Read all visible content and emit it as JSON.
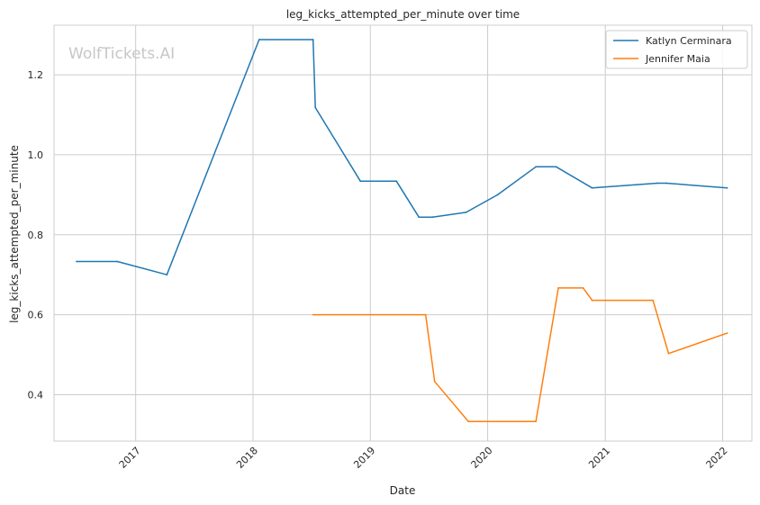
{
  "chart_data": {
    "type": "line",
    "title": "leg_kicks_attempted_per_minute over time",
    "xlabel": "Date",
    "ylabel": "leg_kicks_attempted_per_minute",
    "watermark": "WolfTickets.AI",
    "x_axis": {
      "type": "date",
      "range": [
        "2016-04-22",
        "2022-04-02"
      ],
      "ticks": [
        {
          "date": "2017-01-01",
          "label": "2017"
        },
        {
          "date": "2018-01-01",
          "label": "2018"
        },
        {
          "date": "2019-01-01",
          "label": "2019"
        },
        {
          "date": "2020-01-01",
          "label": "2020"
        },
        {
          "date": "2021-01-01",
          "label": "2021"
        },
        {
          "date": "2022-01-01",
          "label": "2022"
        }
      ]
    },
    "y_axis": {
      "range": [
        0.284,
        1.324
      ],
      "ticks": [
        {
          "value": 0.4,
          "label": "0.4"
        },
        {
          "value": 0.6,
          "label": "0.6"
        },
        {
          "value": 0.8,
          "label": "0.8"
        },
        {
          "value": 1.0,
          "label": "1.0"
        },
        {
          "value": 1.2,
          "label": "1.2"
        }
      ]
    },
    "grid": true,
    "legend": "top-right",
    "series": [
      {
        "name": "Katlyn Cerminara",
        "color": "#1f77b4",
        "points": [
          {
            "x": "2016-07-01",
            "y": 0.733
          },
          {
            "x": "2016-11-05",
            "y": 0.733
          },
          {
            "x": "2017-04-08",
            "y": 0.7
          },
          {
            "x": "2018-01-20",
            "y": 1.288
          },
          {
            "x": "2018-07-07",
            "y": 1.288
          },
          {
            "x": "2018-07-14",
            "y": 1.118
          },
          {
            "x": "2018-12-01",
            "y": 0.934
          },
          {
            "x": "2019-03-23",
            "y": 0.934
          },
          {
            "x": "2019-06-01",
            "y": 0.844
          },
          {
            "x": "2019-07-13",
            "y": 0.844
          },
          {
            "x": "2019-10-26",
            "y": 0.856
          },
          {
            "x": "2020-02-01",
            "y": 0.9
          },
          {
            "x": "2020-05-30",
            "y": 0.97
          },
          {
            "x": "2020-08-01",
            "y": 0.97
          },
          {
            "x": "2020-11-21",
            "y": 0.917
          },
          {
            "x": "2021-06-12",
            "y": 0.929
          },
          {
            "x": "2021-07-10",
            "y": 0.929
          },
          {
            "x": "2022-01-15",
            "y": 0.917
          }
        ]
      },
      {
        "name": "Jennifer Maia",
        "color": "#ff7f0e",
        "points": [
          {
            "x": "2018-07-07",
            "y": 0.6
          },
          {
            "x": "2019-06-22",
            "y": 0.6
          },
          {
            "x": "2019-07-20",
            "y": 0.433
          },
          {
            "x": "2019-11-02",
            "y": 0.333
          },
          {
            "x": "2020-05-30",
            "y": 0.333
          },
          {
            "x": "2020-08-08",
            "y": 0.667
          },
          {
            "x": "2020-10-24",
            "y": 0.667
          },
          {
            "x": "2020-11-21",
            "y": 0.636
          },
          {
            "x": "2021-05-29",
            "y": 0.636
          },
          {
            "x": "2021-07-17",
            "y": 0.503
          },
          {
            "x": "2022-01-15",
            "y": 0.554
          }
        ]
      }
    ]
  }
}
